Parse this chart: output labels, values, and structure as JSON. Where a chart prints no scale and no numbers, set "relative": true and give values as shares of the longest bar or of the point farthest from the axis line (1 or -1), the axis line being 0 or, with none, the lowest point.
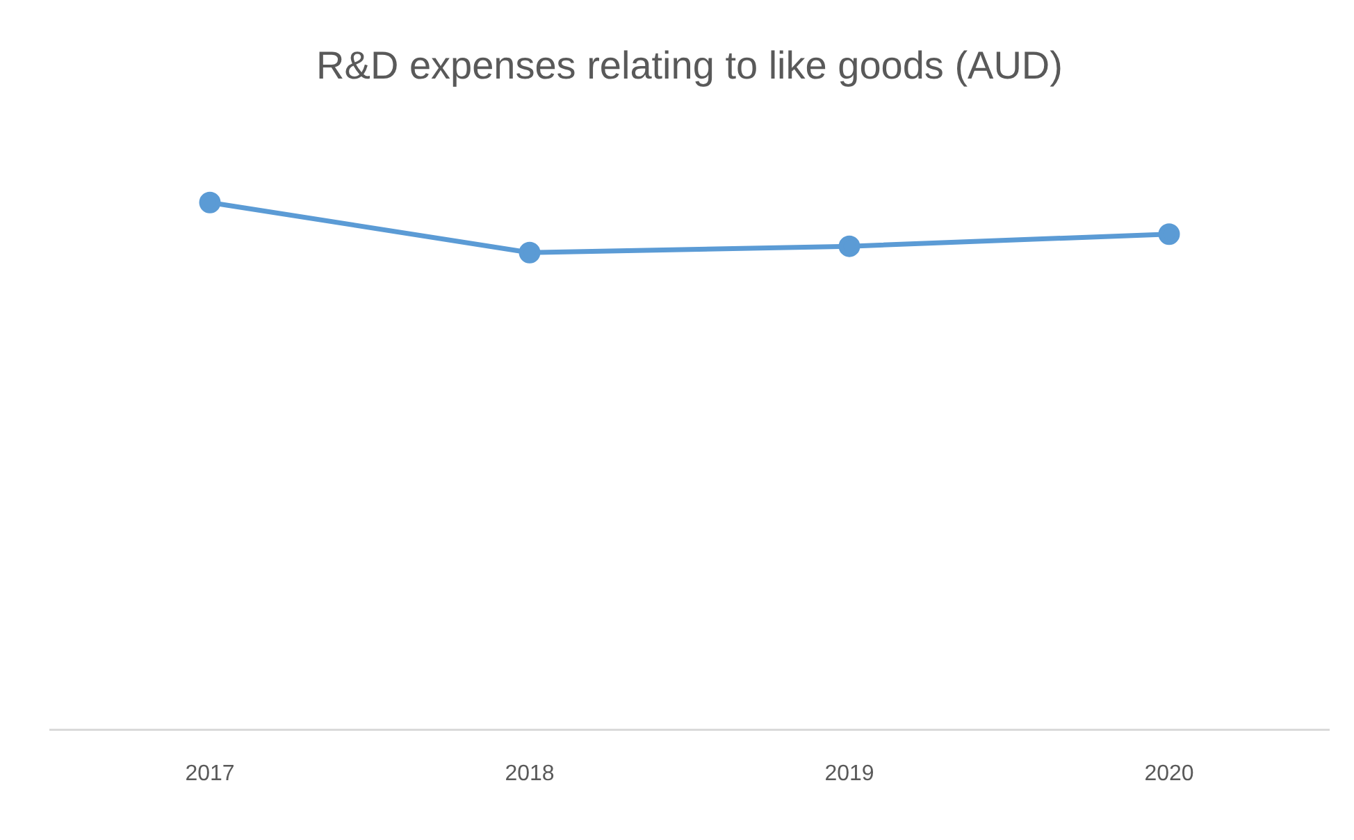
{
  "chart_data": {
    "type": "line",
    "title": "R&D expenses relating to like goods (AUD)",
    "categories": [
      "2017",
      "2018",
      "2019",
      "2020"
    ],
    "values": [
      1,
      0.905,
      0.917,
      0.94
    ],
    "color": "#5b9bd5",
    "relative": true,
    "marker": "circle",
    "line_style": "solid"
  }
}
